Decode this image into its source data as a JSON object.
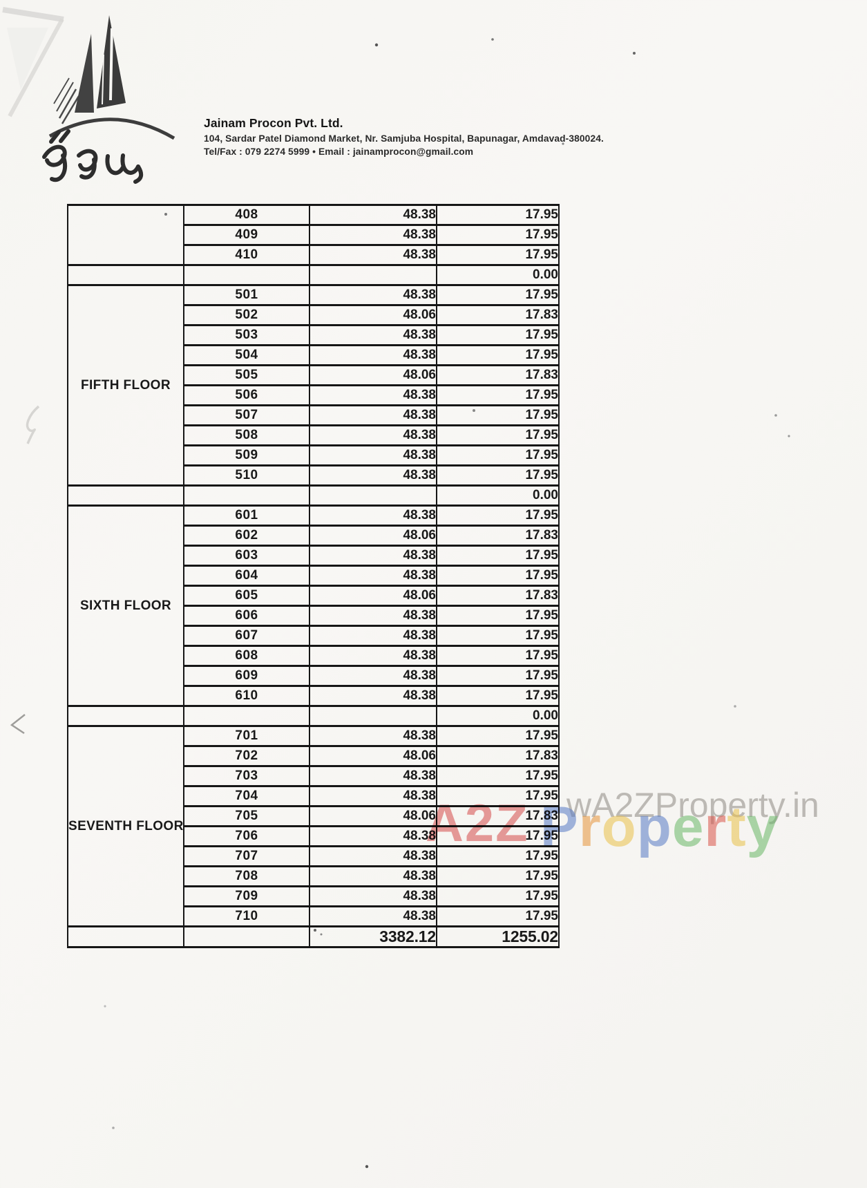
{
  "header": {
    "company_name": "Jainam Procon Pvt. Ltd.",
    "address_line": "104, Sardar Patel Diamond Market, Nr. Samjuba Hospital, Bapunagar, Amdavad-380024.",
    "contact_line": "Tel/Fax : 079 2274 5999 • Email : jainamprocon@gmail.com",
    "logo": {
      "name": "jainam-building-logo",
      "script_text": "જૈનમ"
    }
  },
  "table": {
    "sections": [
      {
        "floor_label": "",
        "rows": [
          {
            "unit": "408",
            "value_a": "48.38",
            "value_b": "17.95"
          },
          {
            "unit": "409",
            "value_a": "48.38",
            "value_b": "17.95"
          },
          {
            "unit": "410",
            "value_a": "48.38",
            "value_b": "17.95"
          }
        ],
        "subtotal": "0.00"
      },
      {
        "floor_label": "FIFTH FLOOR",
        "rows": [
          {
            "unit": "501",
            "value_a": "48.38",
            "value_b": "17.95"
          },
          {
            "unit": "502",
            "value_a": "48.06",
            "value_b": "17.83"
          },
          {
            "unit": "503",
            "value_a": "48.38",
            "value_b": "17.95"
          },
          {
            "unit": "504",
            "value_a": "48.38",
            "value_b": "17.95"
          },
          {
            "unit": "505",
            "value_a": "48.06",
            "value_b": "17.83"
          },
          {
            "unit": "506",
            "value_a": "48.38",
            "value_b": "17.95"
          },
          {
            "unit": "507",
            "value_a": "48.38",
            "value_b": "17.95"
          },
          {
            "unit": "508",
            "value_a": "48.38",
            "value_b": "17.95"
          },
          {
            "unit": "509",
            "value_a": "48.38",
            "value_b": "17.95"
          },
          {
            "unit": "510",
            "value_a": "48.38",
            "value_b": "17.95"
          }
        ],
        "subtotal": "0.00"
      },
      {
        "floor_label": "SIXTH FLOOR",
        "rows": [
          {
            "unit": "601",
            "value_a": "48.38",
            "value_b": "17.95"
          },
          {
            "unit": "602",
            "value_a": "48.06",
            "value_b": "17.83"
          },
          {
            "unit": "603",
            "value_a": "48.38",
            "value_b": "17.95"
          },
          {
            "unit": "604",
            "value_a": "48.38",
            "value_b": "17.95"
          },
          {
            "unit": "605",
            "value_a": "48.06",
            "value_b": "17.83"
          },
          {
            "unit": "606",
            "value_a": "48.38",
            "value_b": "17.95"
          },
          {
            "unit": "607",
            "value_a": "48.38",
            "value_b": "17.95"
          },
          {
            "unit": "608",
            "value_a": "48.38",
            "value_b": "17.95"
          },
          {
            "unit": "609",
            "value_a": "48.38",
            "value_b": "17.95"
          },
          {
            "unit": "610",
            "value_a": "48.38",
            "value_b": "17.95"
          }
        ],
        "subtotal": "0.00"
      },
      {
        "floor_label": "SEVENTH FLOOR",
        "rows": [
          {
            "unit": "701",
            "value_a": "48.38",
            "value_b": "17.95"
          },
          {
            "unit": "702",
            "value_a": "48.06",
            "value_b": "17.83"
          },
          {
            "unit": "703",
            "value_a": "48.38",
            "value_b": "17.95"
          },
          {
            "unit": "704",
            "value_a": "48.38",
            "value_b": "17.95"
          },
          {
            "unit": "705",
            "value_a": "48.06",
            "value_b": "17.83"
          },
          {
            "unit": "706",
            "value_a": "48.38",
            "value_b": "17.95"
          },
          {
            "unit": "707",
            "value_a": "48.38",
            "value_b": "17.95"
          },
          {
            "unit": "708",
            "value_a": "48.38",
            "value_b": "17.95"
          },
          {
            "unit": "709",
            "value_a": "48.38",
            "value_b": "17.95"
          },
          {
            "unit": "710",
            "value_a": "48.38",
            "value_b": "17.95"
          }
        ],
        "subtotal": null
      }
    ],
    "total_row": {
      "value_a_total": "3382.12",
      "value_b_total": "1255.02"
    }
  },
  "watermark": {
    "site_text": "wA2ZProperty.in",
    "brand_red": "A2Z",
    "brand_colored": [
      {
        "ch": "P",
        "color": "#5a7fd0"
      },
      {
        "ch": "r",
        "color": "#ef9a3d"
      },
      {
        "ch": "o",
        "color": "#f2c84e"
      },
      {
        "ch": "p",
        "color": "#5a7fd0"
      },
      {
        "ch": "e",
        "color": "#6cbf6c"
      },
      {
        "ch": "r",
        "color": "#e2574e"
      },
      {
        "ch": "t",
        "color": "#f2c84e"
      },
      {
        "ch": "y",
        "color": "#6cbf6c"
      }
    ],
    "red_color": "#dc4f4f",
    "gray_color": "#b9b7b3"
  }
}
